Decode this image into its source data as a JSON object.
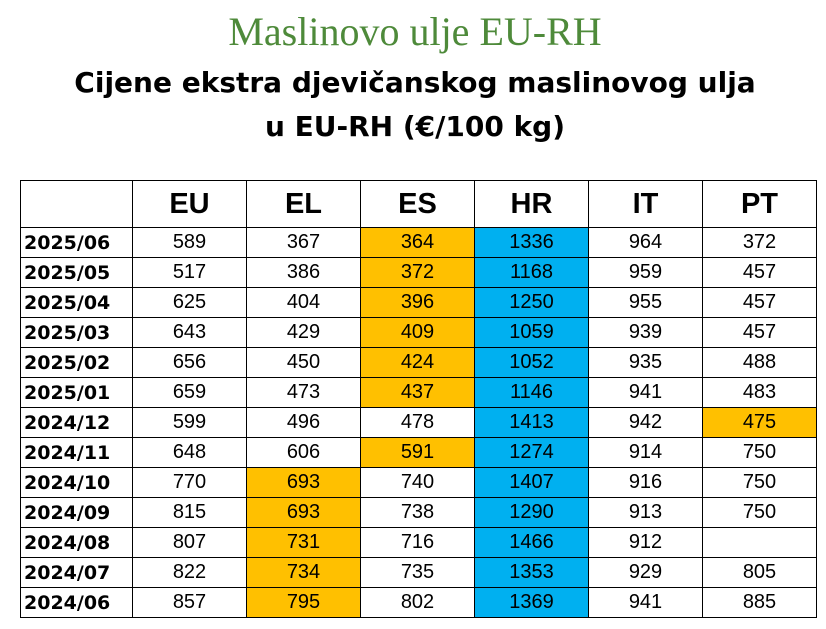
{
  "header": {
    "title": "Maslinovo ulje EU-RH",
    "subtitle_lines": [
      "Cijene ekstra djevičanskog maslinovog ulja",
      "u EU-RH (€/100 kg)"
    ]
  },
  "table": {
    "columns": [
      "EU",
      "EL",
      "ES",
      "HR",
      "IT",
      "PT"
    ],
    "rows": [
      [
        "2025/06",
        589,
        367,
        364,
        1336,
        964,
        372
      ],
      [
        "2025/05",
        517,
        386,
        372,
        1168,
        959,
        457
      ],
      [
        "2025/04",
        625,
        404,
        396,
        1250,
        955,
        457
      ],
      [
        "2025/03",
        643,
        429,
        409,
        1059,
        939,
        457
      ],
      [
        "2025/02",
        656,
        450,
        424,
        1052,
        935,
        488
      ],
      [
        "2025/01",
        659,
        473,
        437,
        1146,
        941,
        483
      ],
      [
        "2024/12",
        599,
        496,
        478,
        1413,
        942,
        475
      ],
      [
        "2024/11",
        648,
        606,
        591,
        1274,
        914,
        750
      ],
      [
        "2024/10",
        770,
        693,
        740,
        1407,
        916,
        750
      ],
      [
        "2024/09",
        815,
        693,
        738,
        1290,
        913,
        750
      ],
      [
        "2024/08",
        807,
        731,
        716,
        1466,
        912,
        null
      ],
      [
        "2024/07",
        822,
        734,
        735,
        1353,
        929,
        805
      ],
      [
        "2024/06",
        857,
        795,
        802,
        1369,
        941,
        885
      ]
    ]
  }
}
